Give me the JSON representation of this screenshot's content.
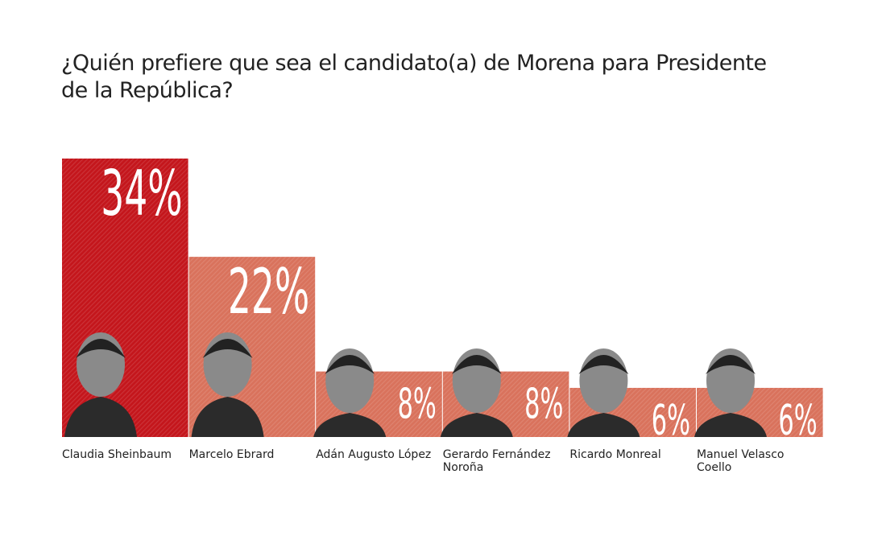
{
  "chart_data": {
    "type": "bar",
    "title": "¿Quién prefiere que sea el candidato(a) de Morena para Presidente de la República?",
    "categories": [
      "Claudia Sheinbaum",
      "Marcelo Ebrard",
      "Adán Augusto López",
      "Gerardo Fernández Noroña",
      "Ricardo Monreal",
      "Manuel Velasco Coello"
    ],
    "values": [
      34,
      22,
      8,
      8,
      6,
      6
    ],
    "data_labels": [
      "34%",
      "22%",
      "8%",
      "8%",
      "6%",
      "6%"
    ],
    "unit": "%",
    "ylim": [
      0,
      34
    ],
    "grid": false,
    "colors": {
      "highlight": "#c4161c",
      "other": "#d9725c",
      "label_text": "#ffffff"
    }
  }
}
